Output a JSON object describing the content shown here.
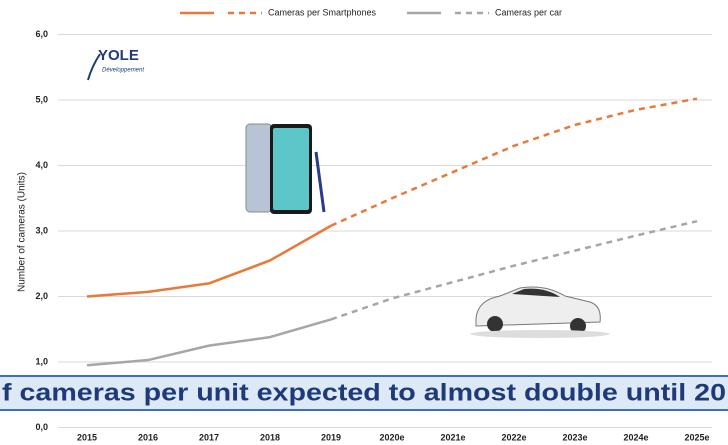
{
  "chart_data": {
    "type": "line",
    "y_label": "Number of cameras (Units)",
    "banner": "f cameras per unit expected to almost double until 20",
    "logo": {
      "name": "YOLE",
      "subtitle": "Développement"
    },
    "categories": [
      "2015",
      "2016",
      "2017",
      "2018",
      "2019",
      "2020e",
      "2021e",
      "2022e",
      "2023e",
      "2024e",
      "2025e"
    ],
    "forecast_from": "2019",
    "series": [
      {
        "name": "Cameras per Smartphones",
        "color": "#e8793a",
        "values": [
          2.0,
          2.07,
          2.2,
          2.55,
          3.08,
          3.5,
          3.9,
          4.3,
          4.62,
          4.85,
          5.02
        ]
      },
      {
        "name": "Cameras per car",
        "color": "#a6a6a6",
        "values": [
          0.95,
          1.03,
          1.25,
          1.38,
          1.65,
          1.97,
          2.22,
          2.47,
          2.7,
          2.93,
          3.15
        ]
      }
    ],
    "ylim": [
      0,
      6
    ],
    "yticks": [
      {
        "value": 0,
        "label": "0,0"
      },
      {
        "value": 1,
        "label": "1,0"
      },
      {
        "value": 2,
        "label": "2,0"
      },
      {
        "value": 3,
        "label": "3,0"
      },
      {
        "value": 4,
        "label": "4,0"
      },
      {
        "value": 5,
        "label": "5,0"
      },
      {
        "value": 6,
        "label": "6,0"
      }
    ],
    "grid": true
  }
}
